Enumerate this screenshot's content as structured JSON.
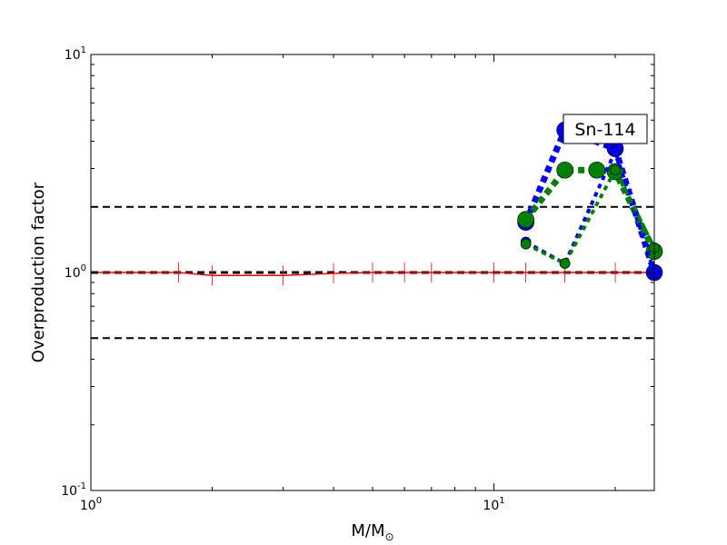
{
  "chart_data": {
    "type": "line",
    "xlabel": "M/M",
    "xlabel_sub": "⊙",
    "ylabel": "Overproduction factor",
    "x_scale": "log",
    "y_scale": "log",
    "xlim": [
      1,
      25
    ],
    "ylim": [
      0.1,
      10
    ],
    "x_ticks": [
      {
        "base": "10",
        "exp": "0",
        "value": 1
      },
      {
        "base": "10",
        "exp": "1",
        "value": 10
      }
    ],
    "y_ticks": [
      {
        "base": "10",
        "exp": "-1",
        "value": 0.1
      },
      {
        "base": "10",
        "exp": "0",
        "value": 1
      },
      {
        "base": "10",
        "exp": "1",
        "value": 10
      }
    ],
    "reference_lines": [
      {
        "y": 2,
        "color": "#000000",
        "style": "dashed"
      },
      {
        "y": 1,
        "color": "#000000",
        "style": "dashed"
      },
      {
        "y": 0.5,
        "color": "#000000",
        "style": "dashed"
      }
    ],
    "legend_text": "Sn-114",
    "legend_position": "upper-right",
    "series": [
      {
        "color": "#ff0000",
        "style": "solid",
        "marker": "errorbar",
        "x": [
          1,
          1.65,
          2,
          3,
          4,
          5,
          6,
          7,
          10,
          12,
          15,
          20,
          25
        ],
        "y": [
          1.0,
          1.0,
          0.97,
          0.97,
          0.99,
          1.0,
          1.0,
          1.0,
          1.0,
          1.0,
          1.0,
          1.0,
          1.0
        ]
      },
      {
        "color": "#0000ff",
        "style": "dotted-thick",
        "marker": "circle-large",
        "x": [
          12,
          15,
          20,
          25
        ],
        "y": [
          1.7,
          4.5,
          3.7,
          1.0
        ]
      },
      {
        "color": "#008000",
        "style": "dotted-thick",
        "marker": "circle-large",
        "x": [
          12,
          15,
          18,
          20,
          25
        ],
        "y": [
          1.75,
          2.95,
          2.95,
          2.9,
          1.25
        ]
      },
      {
        "color": "#0000ff",
        "style": "dotted",
        "marker": "circle-small",
        "x": [
          12,
          15,
          20,
          25
        ],
        "y": [
          1.38,
          1.1,
          3.6,
          1.0
        ]
      },
      {
        "color": "#008000",
        "style": "dotted",
        "marker": "circle-small",
        "x": [
          12,
          15,
          20,
          25
        ],
        "y": [
          1.35,
          1.1,
          2.95,
          1.3
        ]
      }
    ]
  }
}
